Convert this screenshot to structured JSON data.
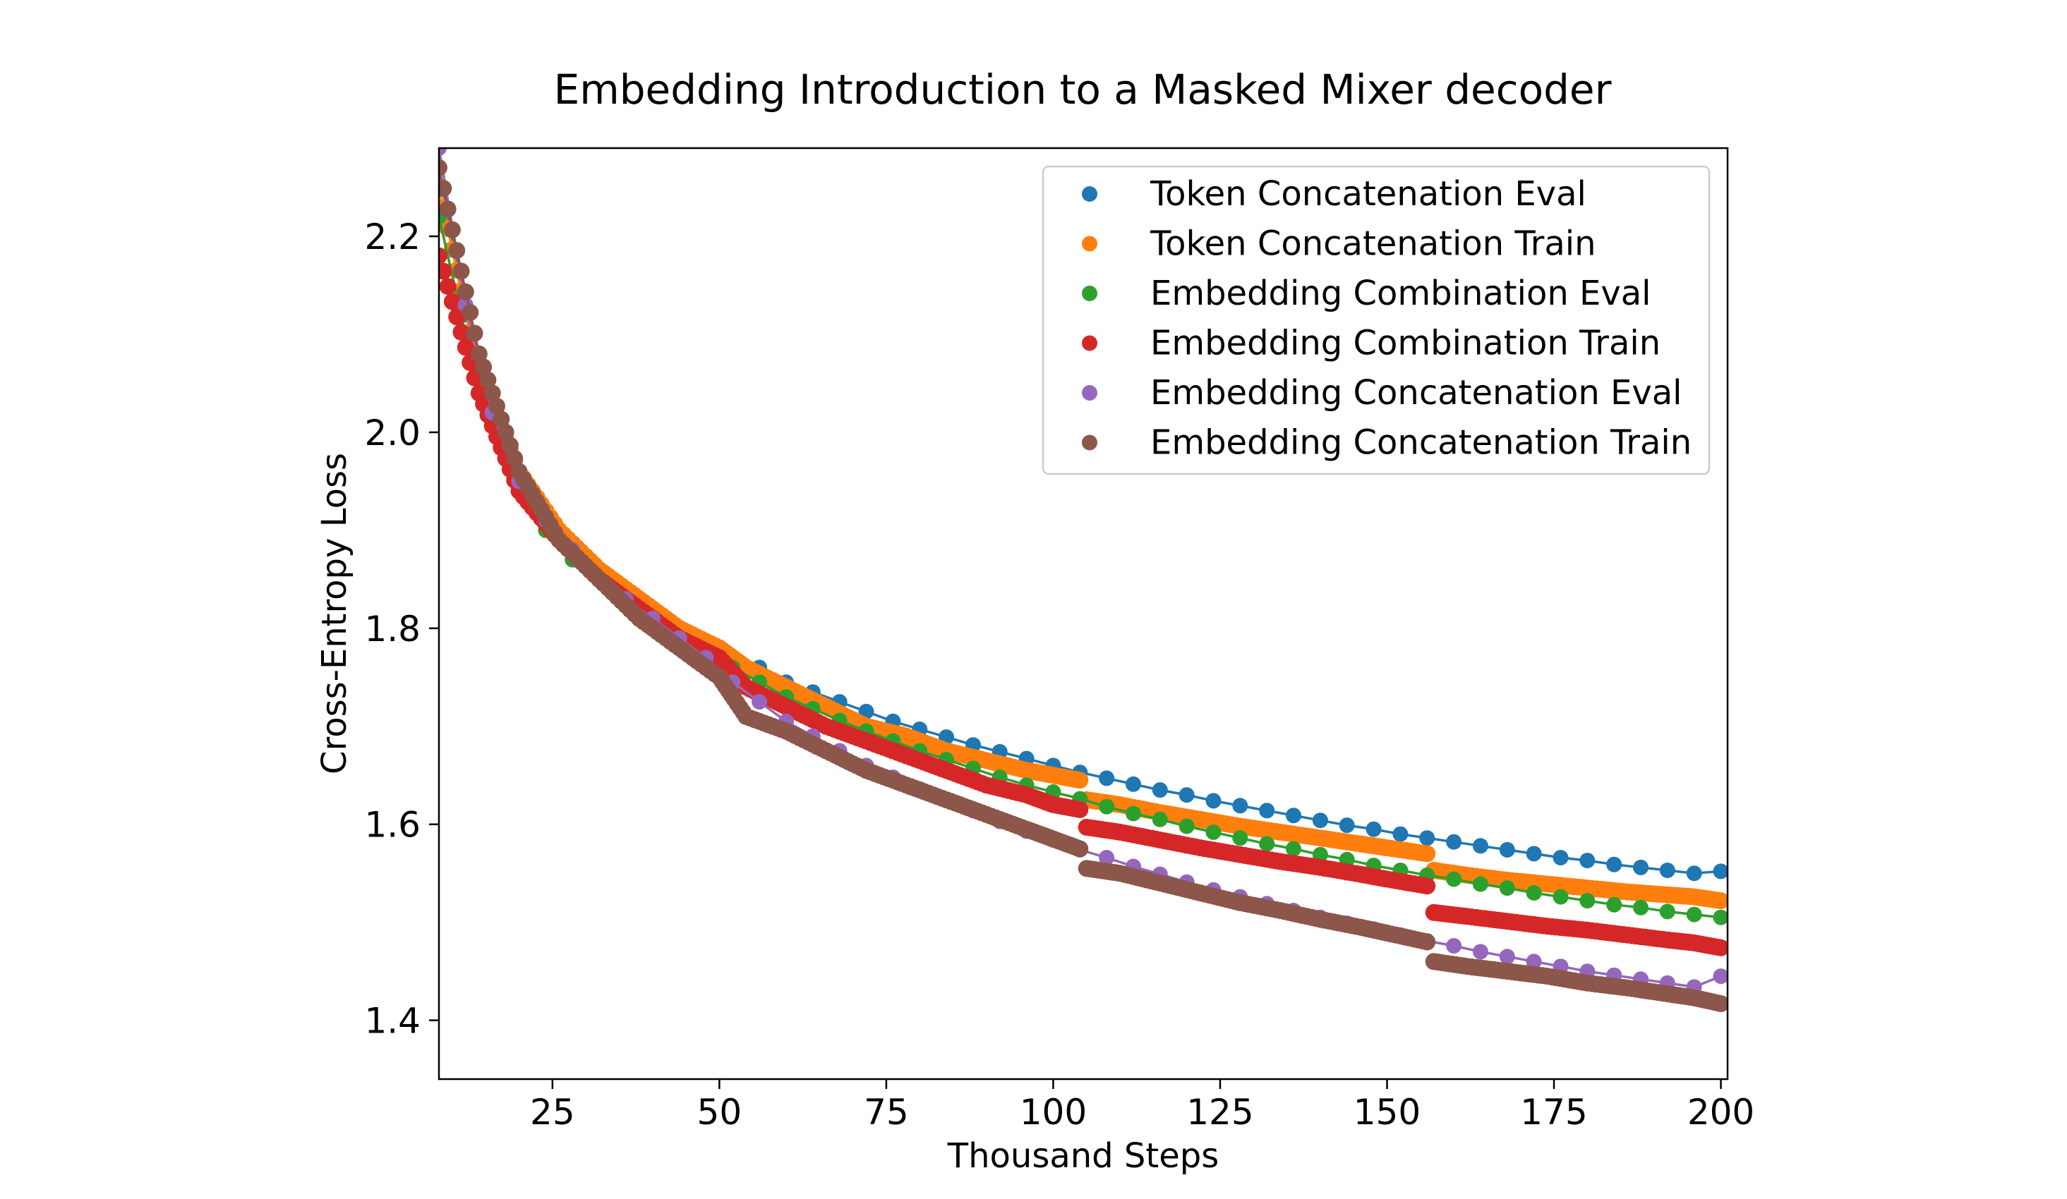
{
  "chart_data": {
    "type": "scatter",
    "title": "Embedding Introduction to a Masked Mixer decoder",
    "xlabel": "Thousand Steps",
    "ylabel": "Cross-Entropy Loss",
    "xlim": [
      8,
      201
    ],
    "ylim": [
      1.34,
      2.29
    ],
    "xticks": [
      25,
      50,
      75,
      100,
      125,
      150,
      175,
      200
    ],
    "xtick_labels": [
      "25",
      "50",
      "75",
      "100",
      "125",
      "150",
      "175",
      "200"
    ],
    "yticks": [
      1.4,
      1.6,
      1.8,
      2.0,
      2.2
    ],
    "ytick_labels": [
      "1.4",
      "1.6",
      "1.8",
      "2.0",
      "2.2"
    ],
    "grid": false,
    "legend_position": "top-right",
    "series": [
      {
        "name": "Token Concatenation Eval",
        "color": "#1f77b4",
        "points": [
          [
            8,
            2.27
          ],
          [
            12,
            2.12
          ],
          [
            16,
            2.02
          ],
          [
            20,
            1.95
          ],
          [
            24,
            1.91
          ],
          [
            28,
            1.88
          ],
          [
            32,
            1.86
          ],
          [
            36,
            1.84
          ],
          [
            40,
            1.82
          ],
          [
            44,
            1.8
          ],
          [
            48,
            1.78
          ],
          [
            52,
            1.77
          ],
          [
            56,
            1.76
          ],
          [
            60,
            1.745
          ],
          [
            64,
            1.735
          ],
          [
            68,
            1.725
          ],
          [
            72,
            1.715
          ],
          [
            76,
            1.705
          ],
          [
            80,
            1.697
          ],
          [
            84,
            1.689
          ],
          [
            88,
            1.681
          ],
          [
            92,
            1.674
          ],
          [
            96,
            1.667
          ],
          [
            100,
            1.66
          ],
          [
            104,
            1.653
          ],
          [
            108,
            1.647
          ],
          [
            112,
            1.641
          ],
          [
            116,
            1.635
          ],
          [
            120,
            1.63
          ],
          [
            124,
            1.624
          ],
          [
            128,
            1.619
          ],
          [
            132,
            1.614
          ],
          [
            136,
            1.609
          ],
          [
            140,
            1.604
          ],
          [
            144,
            1.599
          ],
          [
            148,
            1.595
          ],
          [
            152,
            1.59
          ],
          [
            156,
            1.586
          ],
          [
            160,
            1.582
          ],
          [
            164,
            1.578
          ],
          [
            168,
            1.574
          ],
          [
            172,
            1.57
          ],
          [
            176,
            1.566
          ],
          [
            180,
            1.563
          ],
          [
            184,
            1.559
          ],
          [
            188,
            1.556
          ],
          [
            192,
            1.553
          ],
          [
            196,
            1.55
          ],
          [
            200,
            1.552
          ]
        ]
      },
      {
        "name": "Token Concatenation Train",
        "color": "#ff7f0e",
        "segments": [
          [
            [
              8,
              2.25
            ],
            [
              14,
              2.06
            ],
            [
              20,
              1.96
            ],
            [
              26,
              1.9
            ],
            [
              32,
              1.86
            ],
            [
              38,
              1.83
            ],
            [
              44,
              1.8
            ],
            [
              50,
              1.78
            ],
            [
              54,
              1.76
            ],
            [
              60,
              1.74
            ],
            [
              66,
              1.72
            ],
            [
              72,
              1.7
            ],
            [
              78,
              1.69
            ],
            [
              84,
              1.675
            ],
            [
              90,
              1.665
            ],
            [
              96,
              1.655
            ],
            [
              100,
              1.65
            ],
            [
              104,
              1.645
            ]
          ],
          [
            [
              105,
              1.625
            ],
            [
              110,
              1.62
            ],
            [
              116,
              1.612
            ],
            [
              122,
              1.605
            ],
            [
              128,
              1.598
            ],
            [
              134,
              1.592
            ],
            [
              140,
              1.586
            ],
            [
              146,
              1.58
            ],
            [
              150,
              1.576
            ],
            [
              156,
              1.57
            ]
          ],
          [
            [
              157,
              1.553
            ],
            [
              162,
              1.548
            ],
            [
              168,
              1.543
            ],
            [
              174,
              1.539
            ],
            [
              180,
              1.535
            ],
            [
              186,
              1.531
            ],
            [
              192,
              1.528
            ],
            [
              196,
              1.526
            ],
            [
              200,
              1.522
            ]
          ]
        ]
      },
      {
        "name": "Embedding Combination Eval",
        "color": "#2ca02c",
        "points": [
          [
            8,
            2.22
          ],
          [
            12,
            2.1
          ],
          [
            16,
            2.01
          ],
          [
            20,
            1.94
          ],
          [
            24,
            1.9
          ],
          [
            28,
            1.87
          ],
          [
            32,
            1.85
          ],
          [
            36,
            1.83
          ],
          [
            40,
            1.81
          ],
          [
            44,
            1.79
          ],
          [
            48,
            1.77
          ],
          [
            52,
            1.76
          ],
          [
            56,
            1.745
          ],
          [
            60,
            1.73
          ],
          [
            64,
            1.718
          ],
          [
            68,
            1.706
          ],
          [
            72,
            1.695
          ],
          [
            76,
            1.685
          ],
          [
            80,
            1.675
          ],
          [
            84,
            1.666
          ],
          [
            88,
            1.657
          ],
          [
            92,
            1.648
          ],
          [
            96,
            1.64
          ],
          [
            100,
            1.633
          ],
          [
            104,
            1.626
          ],
          [
            108,
            1.618
          ],
          [
            112,
            1.611
          ],
          [
            116,
            1.605
          ],
          [
            120,
            1.598
          ],
          [
            124,
            1.592
          ],
          [
            128,
            1.586
          ],
          [
            132,
            1.58
          ],
          [
            136,
            1.575
          ],
          [
            140,
            1.569
          ],
          [
            144,
            1.564
          ],
          [
            148,
            1.558
          ],
          [
            152,
            1.553
          ],
          [
            156,
            1.548
          ],
          [
            160,
            1.544
          ],
          [
            164,
            1.539
          ],
          [
            168,
            1.535
          ],
          [
            172,
            1.53
          ],
          [
            176,
            1.526
          ],
          [
            180,
            1.522
          ],
          [
            184,
            1.518
          ],
          [
            188,
            1.515
          ],
          [
            192,
            1.511
          ],
          [
            196,
            1.508
          ],
          [
            200,
            1.505
          ]
        ]
      },
      {
        "name": "Embedding Combination Train",
        "color": "#d62728",
        "segments": [
          [
            [
              8,
              2.18
            ],
            [
              14,
              2.04
            ],
            [
              20,
              1.94
            ],
            [
              26,
              1.89
            ],
            [
              32,
              1.85
            ],
            [
              38,
              1.82
            ],
            [
              44,
              1.79
            ],
            [
              50,
              1.77
            ],
            [
              54,
              1.74
            ],
            [
              60,
              1.72
            ],
            [
              66,
              1.7
            ],
            [
              72,
              1.685
            ],
            [
              78,
              1.67
            ],
            [
              84,
              1.655
            ],
            [
              90,
              1.64
            ],
            [
              96,
              1.63
            ],
            [
              100,
              1.62
            ],
            [
              104,
              1.615
            ]
          ],
          [
            [
              105,
              1.597
            ],
            [
              110,
              1.592
            ],
            [
              116,
              1.584
            ],
            [
              122,
              1.576
            ],
            [
              128,
              1.569
            ],
            [
              134,
              1.562
            ],
            [
              140,
              1.556
            ],
            [
              146,
              1.549
            ],
            [
              150,
              1.544
            ],
            [
              156,
              1.537
            ]
          ],
          [
            [
              157,
              1.51
            ],
            [
              162,
              1.506
            ],
            [
              168,
              1.501
            ],
            [
              174,
              1.496
            ],
            [
              180,
              1.492
            ],
            [
              186,
              1.487
            ],
            [
              192,
              1.482
            ],
            [
              196,
              1.479
            ],
            [
              200,
              1.474
            ]
          ]
        ]
      },
      {
        "name": "Embedding Concatenation Eval",
        "color": "#9467bd",
        "points": [
          [
            8,
            2.29
          ],
          [
            12,
            2.13
          ],
          [
            16,
            2.02
          ],
          [
            20,
            1.95
          ],
          [
            24,
            1.91
          ],
          [
            28,
            1.88
          ],
          [
            32,
            1.85
          ],
          [
            36,
            1.83
          ],
          [
            40,
            1.81
          ],
          [
            44,
            1.79
          ],
          [
            48,
            1.77
          ],
          [
            52,
            1.745
          ],
          [
            56,
            1.725
          ],
          [
            60,
            1.705
          ],
          [
            64,
            1.69
          ],
          [
            68,
            1.675
          ],
          [
            72,
            1.66
          ],
          [
            76,
            1.648
          ],
          [
            80,
            1.636
          ],
          [
            84,
            1.625
          ],
          [
            88,
            1.614
          ],
          [
            92,
            1.603
          ],
          [
            96,
            1.593
          ],
          [
            100,
            1.584
          ],
          [
            104,
            1.574
          ],
          [
            108,
            1.566
          ],
          [
            112,
            1.557
          ],
          [
            116,
            1.549
          ],
          [
            120,
            1.541
          ],
          [
            124,
            1.533
          ],
          [
            128,
            1.526
          ],
          [
            132,
            1.519
          ],
          [
            136,
            1.512
          ],
          [
            140,
            1.505
          ],
          [
            144,
            1.499
          ],
          [
            148,
            1.493
          ],
          [
            152,
            1.487
          ],
          [
            156,
            1.481
          ],
          [
            160,
            1.476
          ],
          [
            164,
            1.47
          ],
          [
            168,
            1.465
          ],
          [
            172,
            1.46
          ],
          [
            176,
            1.455
          ],
          [
            180,
            1.45
          ],
          [
            184,
            1.446
          ],
          [
            188,
            1.442
          ],
          [
            192,
            1.438
          ],
          [
            196,
            1.434
          ],
          [
            200,
            1.445
          ]
        ]
      },
      {
        "name": "Embedding Concatenation Train",
        "color": "#8c564b",
        "segments": [
          [
            [
              8,
              2.27
            ],
            [
              14,
              2.08
            ],
            [
              20,
              1.96
            ],
            [
              26,
              1.89
            ],
            [
              32,
              1.85
            ],
            [
              38,
              1.81
            ],
            [
              44,
              1.78
            ],
            [
              50,
              1.75
            ],
            [
              54,
              1.71
            ],
            [
              60,
              1.695
            ],
            [
              66,
              1.675
            ],
            [
              72,
              1.655
            ],
            [
              78,
              1.64
            ],
            [
              84,
              1.625
            ],
            [
              90,
              1.61
            ],
            [
              96,
              1.595
            ],
            [
              100,
              1.585
            ],
            [
              104,
              1.575
            ]
          ],
          [
            [
              105,
              1.555
            ],
            [
              110,
              1.55
            ],
            [
              116,
              1.54
            ],
            [
              122,
              1.53
            ],
            [
              128,
              1.52
            ],
            [
              134,
              1.512
            ],
            [
              140,
              1.503
            ],
            [
              146,
              1.495
            ],
            [
              150,
              1.489
            ],
            [
              156,
              1.48
            ]
          ],
          [
            [
              157,
              1.46
            ],
            [
              162,
              1.455
            ],
            [
              168,
              1.45
            ],
            [
              174,
              1.445
            ],
            [
              180,
              1.438
            ],
            [
              186,
              1.433
            ],
            [
              192,
              1.427
            ],
            [
              196,
              1.423
            ],
            [
              200,
              1.417
            ]
          ]
        ]
      }
    ]
  }
}
